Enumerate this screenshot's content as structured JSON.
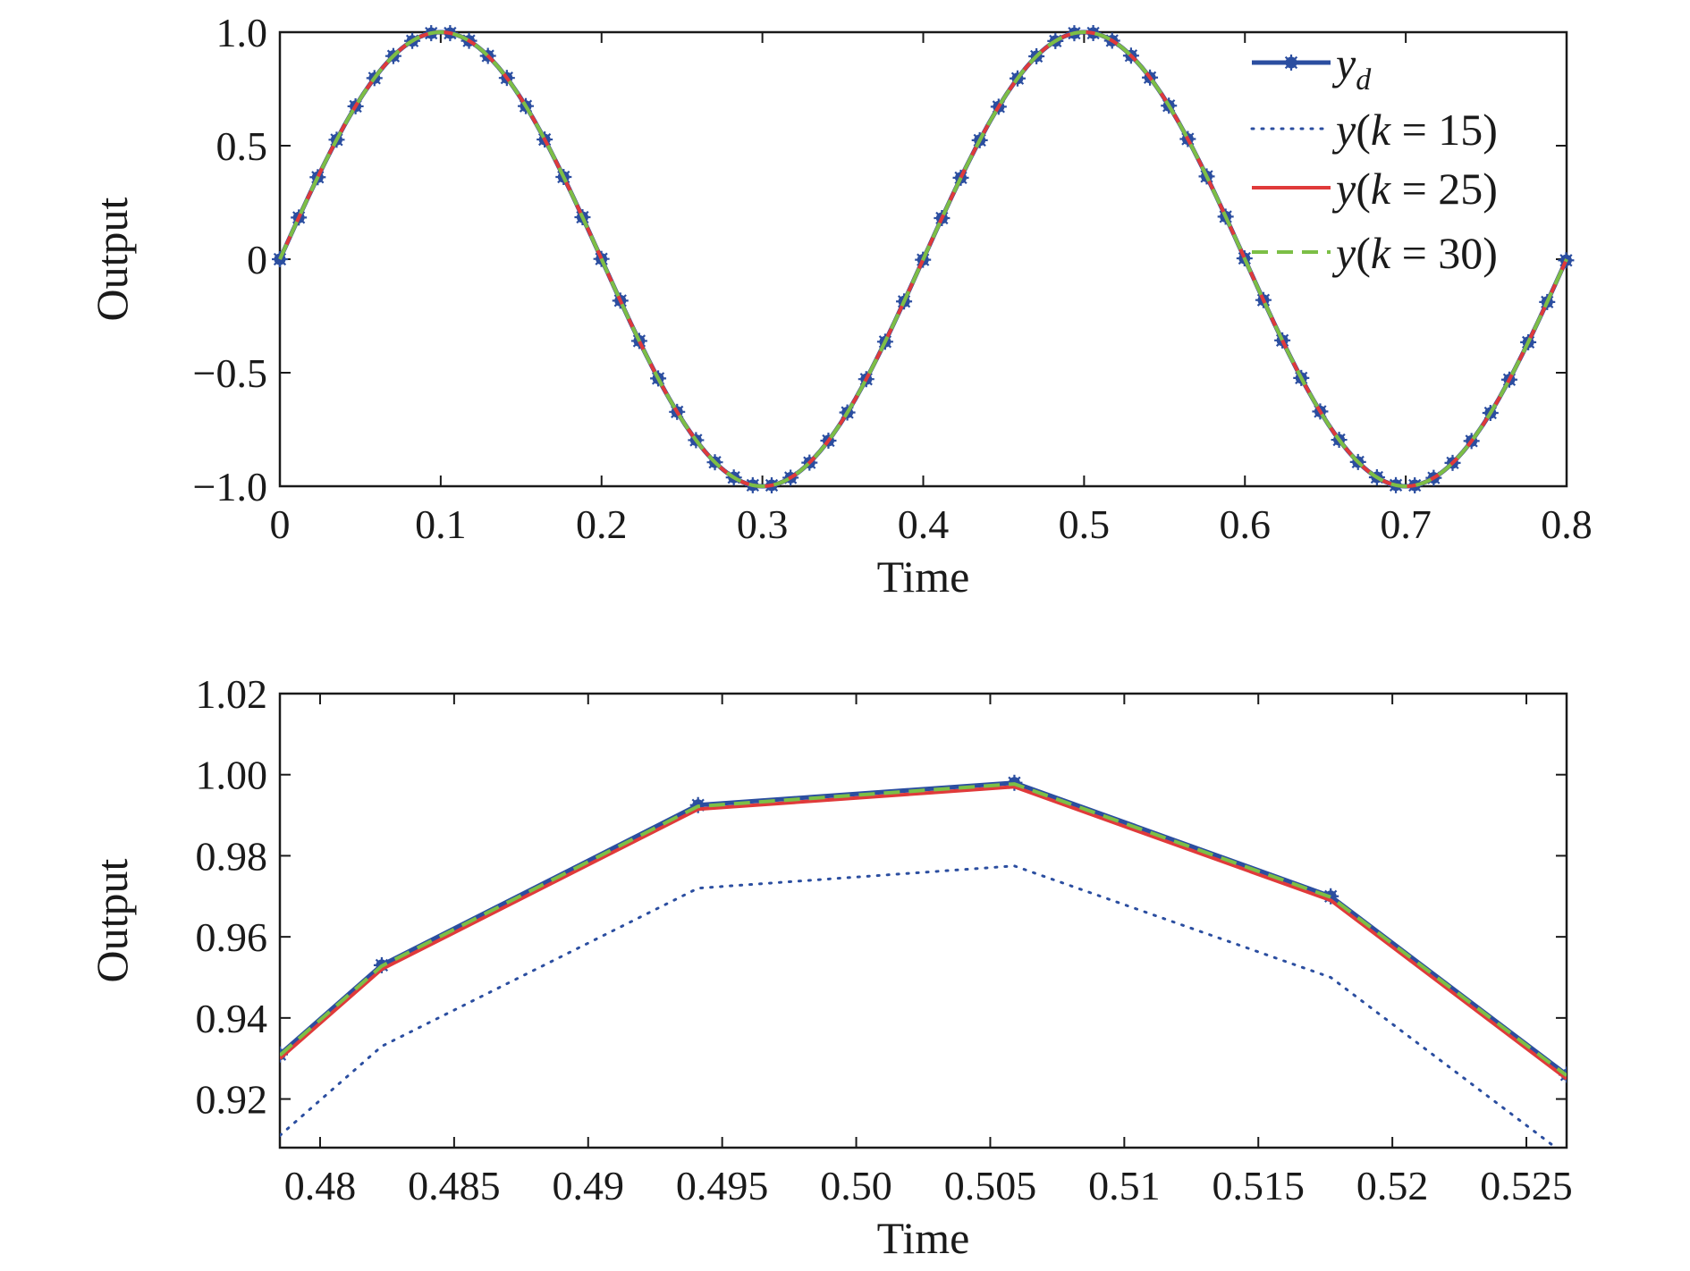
{
  "colors": {
    "yd": "#2b4ea0",
    "k15": "#2b4ea0",
    "k25": "#e03a3a",
    "k30": "#7cbf46",
    "axis": "#1a1a1a"
  },
  "chart_data": [
    {
      "type": "line",
      "xlabel": "Time",
      "ylabel": "Output",
      "xlim": [
        0,
        0.8
      ],
      "ylim": [
        -1.0,
        1.0
      ],
      "xticks": [
        {
          "v": 0,
          "label": "0"
        },
        {
          "v": 0.1,
          "label": "0.1"
        },
        {
          "v": 0.2,
          "label": "0.2"
        },
        {
          "v": 0.3,
          "label": "0.3"
        },
        {
          "v": 0.4,
          "label": "0.4"
        },
        {
          "v": 0.5,
          "label": "0.5"
        },
        {
          "v": 0.6,
          "label": "0.6"
        },
        {
          "v": 0.7,
          "label": "0.7"
        },
        {
          "v": 0.8,
          "label": "0.8"
        }
      ],
      "yticks": [
        {
          "v": 1.0,
          "label": "1.0"
        },
        {
          "v": 0.5,
          "label": "0.5"
        },
        {
          "v": 0,
          "label": "0"
        },
        {
          "v": -0.5,
          "label": "−0.5"
        },
        {
          "v": -1.0,
          "label": "−1.0"
        }
      ],
      "legend_position": "top-right",
      "legend": [
        {
          "key": "yd",
          "main": "y",
          "sub": "d",
          "suffix": ""
        },
        {
          "key": "k15",
          "main": "y",
          "sub": "",
          "suffix": "(k = 15)"
        },
        {
          "key": "k25",
          "main": "y",
          "sub": "",
          "suffix": "(k = 25)"
        },
        {
          "key": "k30",
          "main": "y",
          "sub": "",
          "suffix": "(k = 30)"
        }
      ],
      "function": "y = sin(2*pi*t/0.4)",
      "sample_step": 0.01176,
      "series": [
        {
          "key": "yd",
          "name": "y_d",
          "x_range": [
            0,
            0.8
          ],
          "markers": true
        },
        {
          "key": "k15",
          "name": "y(k = 15)",
          "x_range": [
            0,
            0.8
          ]
        },
        {
          "key": "k25",
          "name": "y(k = 25)",
          "x_range": [
            0,
            0.8
          ]
        },
        {
          "key": "k30",
          "name": "y(k = 30)",
          "x_range": [
            0,
            0.8
          ]
        }
      ]
    },
    {
      "type": "line",
      "xlabel": "Time",
      "ylabel": "Output",
      "xlim": [
        0.4785,
        0.5265
      ],
      "ylim": [
        0.908,
        1.02
      ],
      "xticks": [
        {
          "v": 0.48,
          "label": "0.48"
        },
        {
          "v": 0.485,
          "label": "0.485"
        },
        {
          "v": 0.49,
          "label": "0.49"
        },
        {
          "v": 0.495,
          "label": "0.495"
        },
        {
          "v": 0.5,
          "label": "0.50"
        },
        {
          "v": 0.505,
          "label": "0.505"
        },
        {
          "v": 0.51,
          "label": "0.51"
        },
        {
          "v": 0.515,
          "label": "0.515"
        },
        {
          "v": 0.52,
          "label": "0.52"
        },
        {
          "v": 0.525,
          "label": "0.525"
        }
      ],
      "yticks": [
        {
          "v": 1.02,
          "label": "1.02"
        },
        {
          "v": 1.0,
          "label": "1.00"
        },
        {
          "v": 0.98,
          "label": "0.98"
        },
        {
          "v": 0.96,
          "label": "0.96"
        },
        {
          "v": 0.94,
          "label": "0.94"
        },
        {
          "v": 0.92,
          "label": "0.92"
        }
      ],
      "series": [
        {
          "key": "yd",
          "name": "y_d",
          "markers": true,
          "x": [
            0.4785,
            0.4823,
            0.4941,
            0.5059,
            0.5177,
            0.5265
          ],
          "y": [
            0.931,
            0.953,
            0.9925,
            0.998,
            0.97,
            0.926
          ]
        },
        {
          "key": "k15",
          "name": "y(k = 15)",
          "x": [
            0.4785,
            0.4823,
            0.4941,
            0.5059,
            0.5177,
            0.5265
          ],
          "y": [
            0.911,
            0.933,
            0.972,
            0.9775,
            0.95,
            0.906
          ]
        },
        {
          "key": "k25",
          "name": "y(k = 25)",
          "x": [
            0.4785,
            0.4823,
            0.4941,
            0.5059,
            0.5177,
            0.5265
          ],
          "y": [
            0.93,
            0.952,
            0.9915,
            0.997,
            0.969,
            0.925
          ]
        },
        {
          "key": "k30",
          "name": "y(k = 30)",
          "x": [
            0.4785,
            0.4823,
            0.4941,
            0.5059,
            0.5177,
            0.5265
          ],
          "y": [
            0.9308,
            0.9528,
            0.9922,
            0.9977,
            0.9698,
            0.9258
          ]
        }
      ]
    }
  ]
}
